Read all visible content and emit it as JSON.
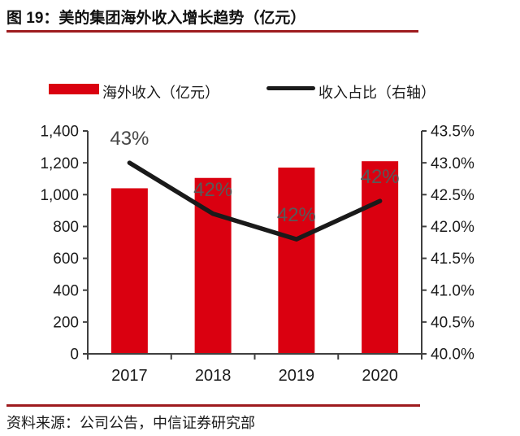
{
  "figure": {
    "title": "图 19：美的集团海外收入增长趋势（亿元）",
    "source": "资料来源：公司公告，中信证券研究部"
  },
  "legend": {
    "bar": {
      "label": "海外收入（亿元）",
      "color": "#DA0010"
    },
    "line": {
      "label": "收入占比（右轴）",
      "color": "#1A1A1A"
    }
  },
  "colors": {
    "accent_rule": "#9E1B1E",
    "bar": "#DA0010",
    "line": "#1A1A1A",
    "axis": "#404040",
    "tick_label": "#1A1A1A",
    "data_label": "#595959",
    "data_label_first": "#474747"
  },
  "chart_data": {
    "type": "bar",
    "subtype": "bar-line-combo",
    "title": "美的集团海外收入增长趋势（亿元）",
    "categories": [
      "2017",
      "2018",
      "2019",
      "2020"
    ],
    "series": [
      {
        "name": "海外收入（亿元）",
        "type": "bar",
        "axis": "left",
        "color": "#DA0010",
        "values": [
          1040,
          1105,
          1170,
          1210
        ]
      },
      {
        "name": "收入占比（右轴）",
        "type": "line",
        "axis": "right",
        "color": "#1A1A1A",
        "values": [
          43.0,
          42.2,
          41.8,
          42.4
        ],
        "point_labels": [
          "43%",
          "42%",
          "42%",
          "42%"
        ]
      }
    ],
    "left_axis": {
      "min": 0,
      "max": 1400,
      "step": 200,
      "tick_labels": [
        "0",
        "200",
        "400",
        "600",
        "800",
        "1,000",
        "1,200",
        "1,400"
      ]
    },
    "right_axis": {
      "min": 40.0,
      "max": 43.5,
      "step": 0.5,
      "tick_labels": [
        "40.0%",
        "40.5%",
        "41.0%",
        "41.5%",
        "42.0%",
        "42.5%",
        "43.0%",
        "43.5%"
      ]
    },
    "grid": false,
    "legend_position": "top"
  }
}
